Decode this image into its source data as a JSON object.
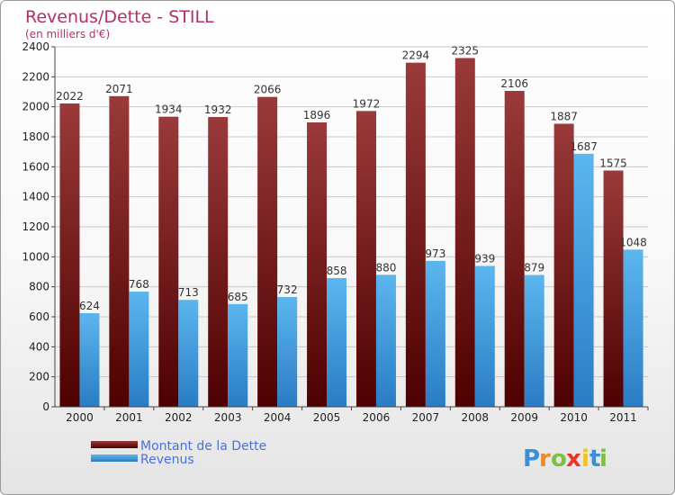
{
  "chart_data": {
    "type": "bar",
    "title": "Revenus/Dette - STILL",
    "subtitle": "(en milliers d'€)",
    "categories": [
      "2000",
      "2001",
      "2002",
      "2003",
      "2004",
      "2005",
      "2006",
      "2007",
      "2008",
      "2009",
      "2010",
      "2011"
    ],
    "series": [
      {
        "name": "Montant de la Dette",
        "color": "#7a1c1c",
        "values": [
          2022,
          2071,
          1934,
          1932,
          2066,
          1896,
          1972,
          2294,
          2325,
          2106,
          1887,
          1575
        ]
      },
      {
        "name": "Revenus",
        "color": "#3a9be0",
        "values": [
          624,
          768,
          713,
          685,
          732,
          858,
          880,
          973,
          939,
          879,
          1687,
          1048
        ]
      }
    ],
    "ylim": [
      0,
      2400
    ],
    "yticks": [
      0,
      200,
      400,
      600,
      800,
      1000,
      1200,
      1400,
      1600,
      1800,
      2000,
      2200,
      2400
    ],
    "grid": true,
    "legend_position": "bottom-left"
  },
  "logo": {
    "letters": [
      "P",
      "r",
      "o",
      "x",
      "i",
      "t",
      "i"
    ],
    "colors": [
      "#3a8fd6",
      "#f08a1c",
      "#7cc142",
      "#e8342a",
      "#f0c419",
      "#3a8fd6",
      "#7cc142"
    ]
  }
}
